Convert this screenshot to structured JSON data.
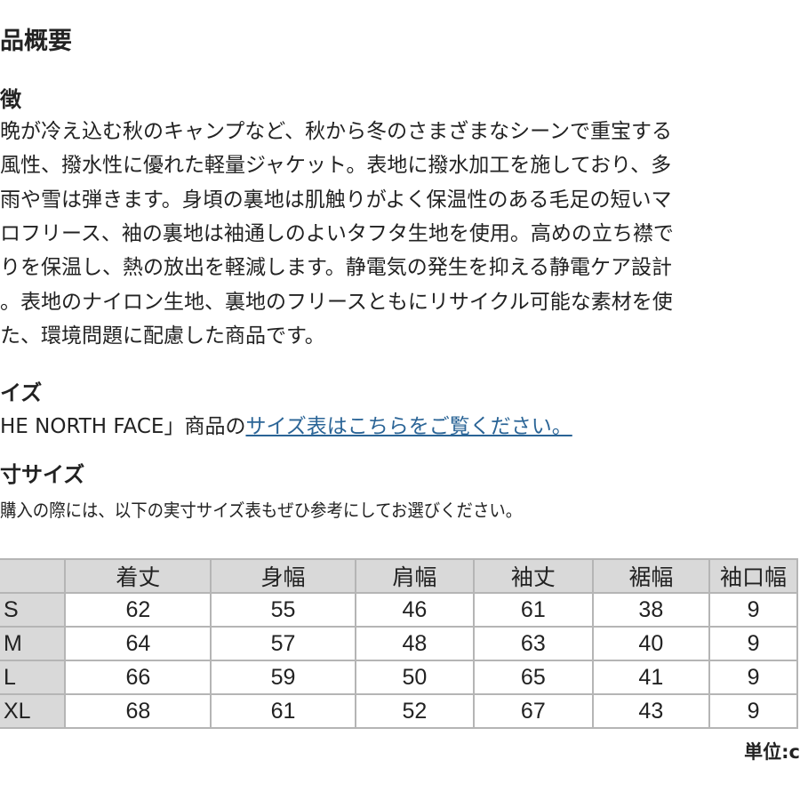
{
  "title": "品概要",
  "features": {
    "heading": "徴",
    "lines": [
      "晩が冷え込む秋のキャンプなど、秋から冬のさまざまなシーンで重宝する",
      "風性、撥水性に優れた軽量ジャケット。表地に撥水加工を施しており、多",
      "雨や雪は弾きます。身頃の裏地は肌触りがよく保温性のある毛足の短いマ",
      "ロフリース、袖の裏地は袖通しのよいタフタ生地を使用。高めの立ち襟で",
      "りを保温し、熱の放出を軽減します。静電気の発生を抑える静電ケア設計",
      "。表地のナイロン生地、裏地のフリースともにリサイクル可能な素材を使",
      "た、環境問題に配慮した商品です。"
    ]
  },
  "size": {
    "heading": "イズ",
    "text": "HE NORTH FACE」商品の",
    "link": "サイズ表はこちらをご覧ください。"
  },
  "actual": {
    "heading": "寸サイズ",
    "note": "購入の際には、以下の実寸サイズ表もぜひ参考にしてお選びください。"
  },
  "table": {
    "headers": [
      "",
      "着丈",
      "身幅",
      "肩幅",
      "袖丈",
      "裾幅",
      "袖口幅"
    ],
    "rows": [
      [
        "S",
        "62",
        "55",
        "46",
        "61",
        "38",
        "9"
      ],
      [
        "M",
        "64",
        "57",
        "48",
        "63",
        "40",
        "9"
      ],
      [
        "L",
        "66",
        "59",
        "50",
        "65",
        "41",
        "9"
      ],
      [
        "XL",
        "68",
        "61",
        "52",
        "67",
        "43",
        "9"
      ]
    ],
    "unit": "単位:c"
  },
  "colors": {
    "link": "#2a6496",
    "header_bg": "#d9d9d9",
    "border": "#b5b5b5"
  }
}
